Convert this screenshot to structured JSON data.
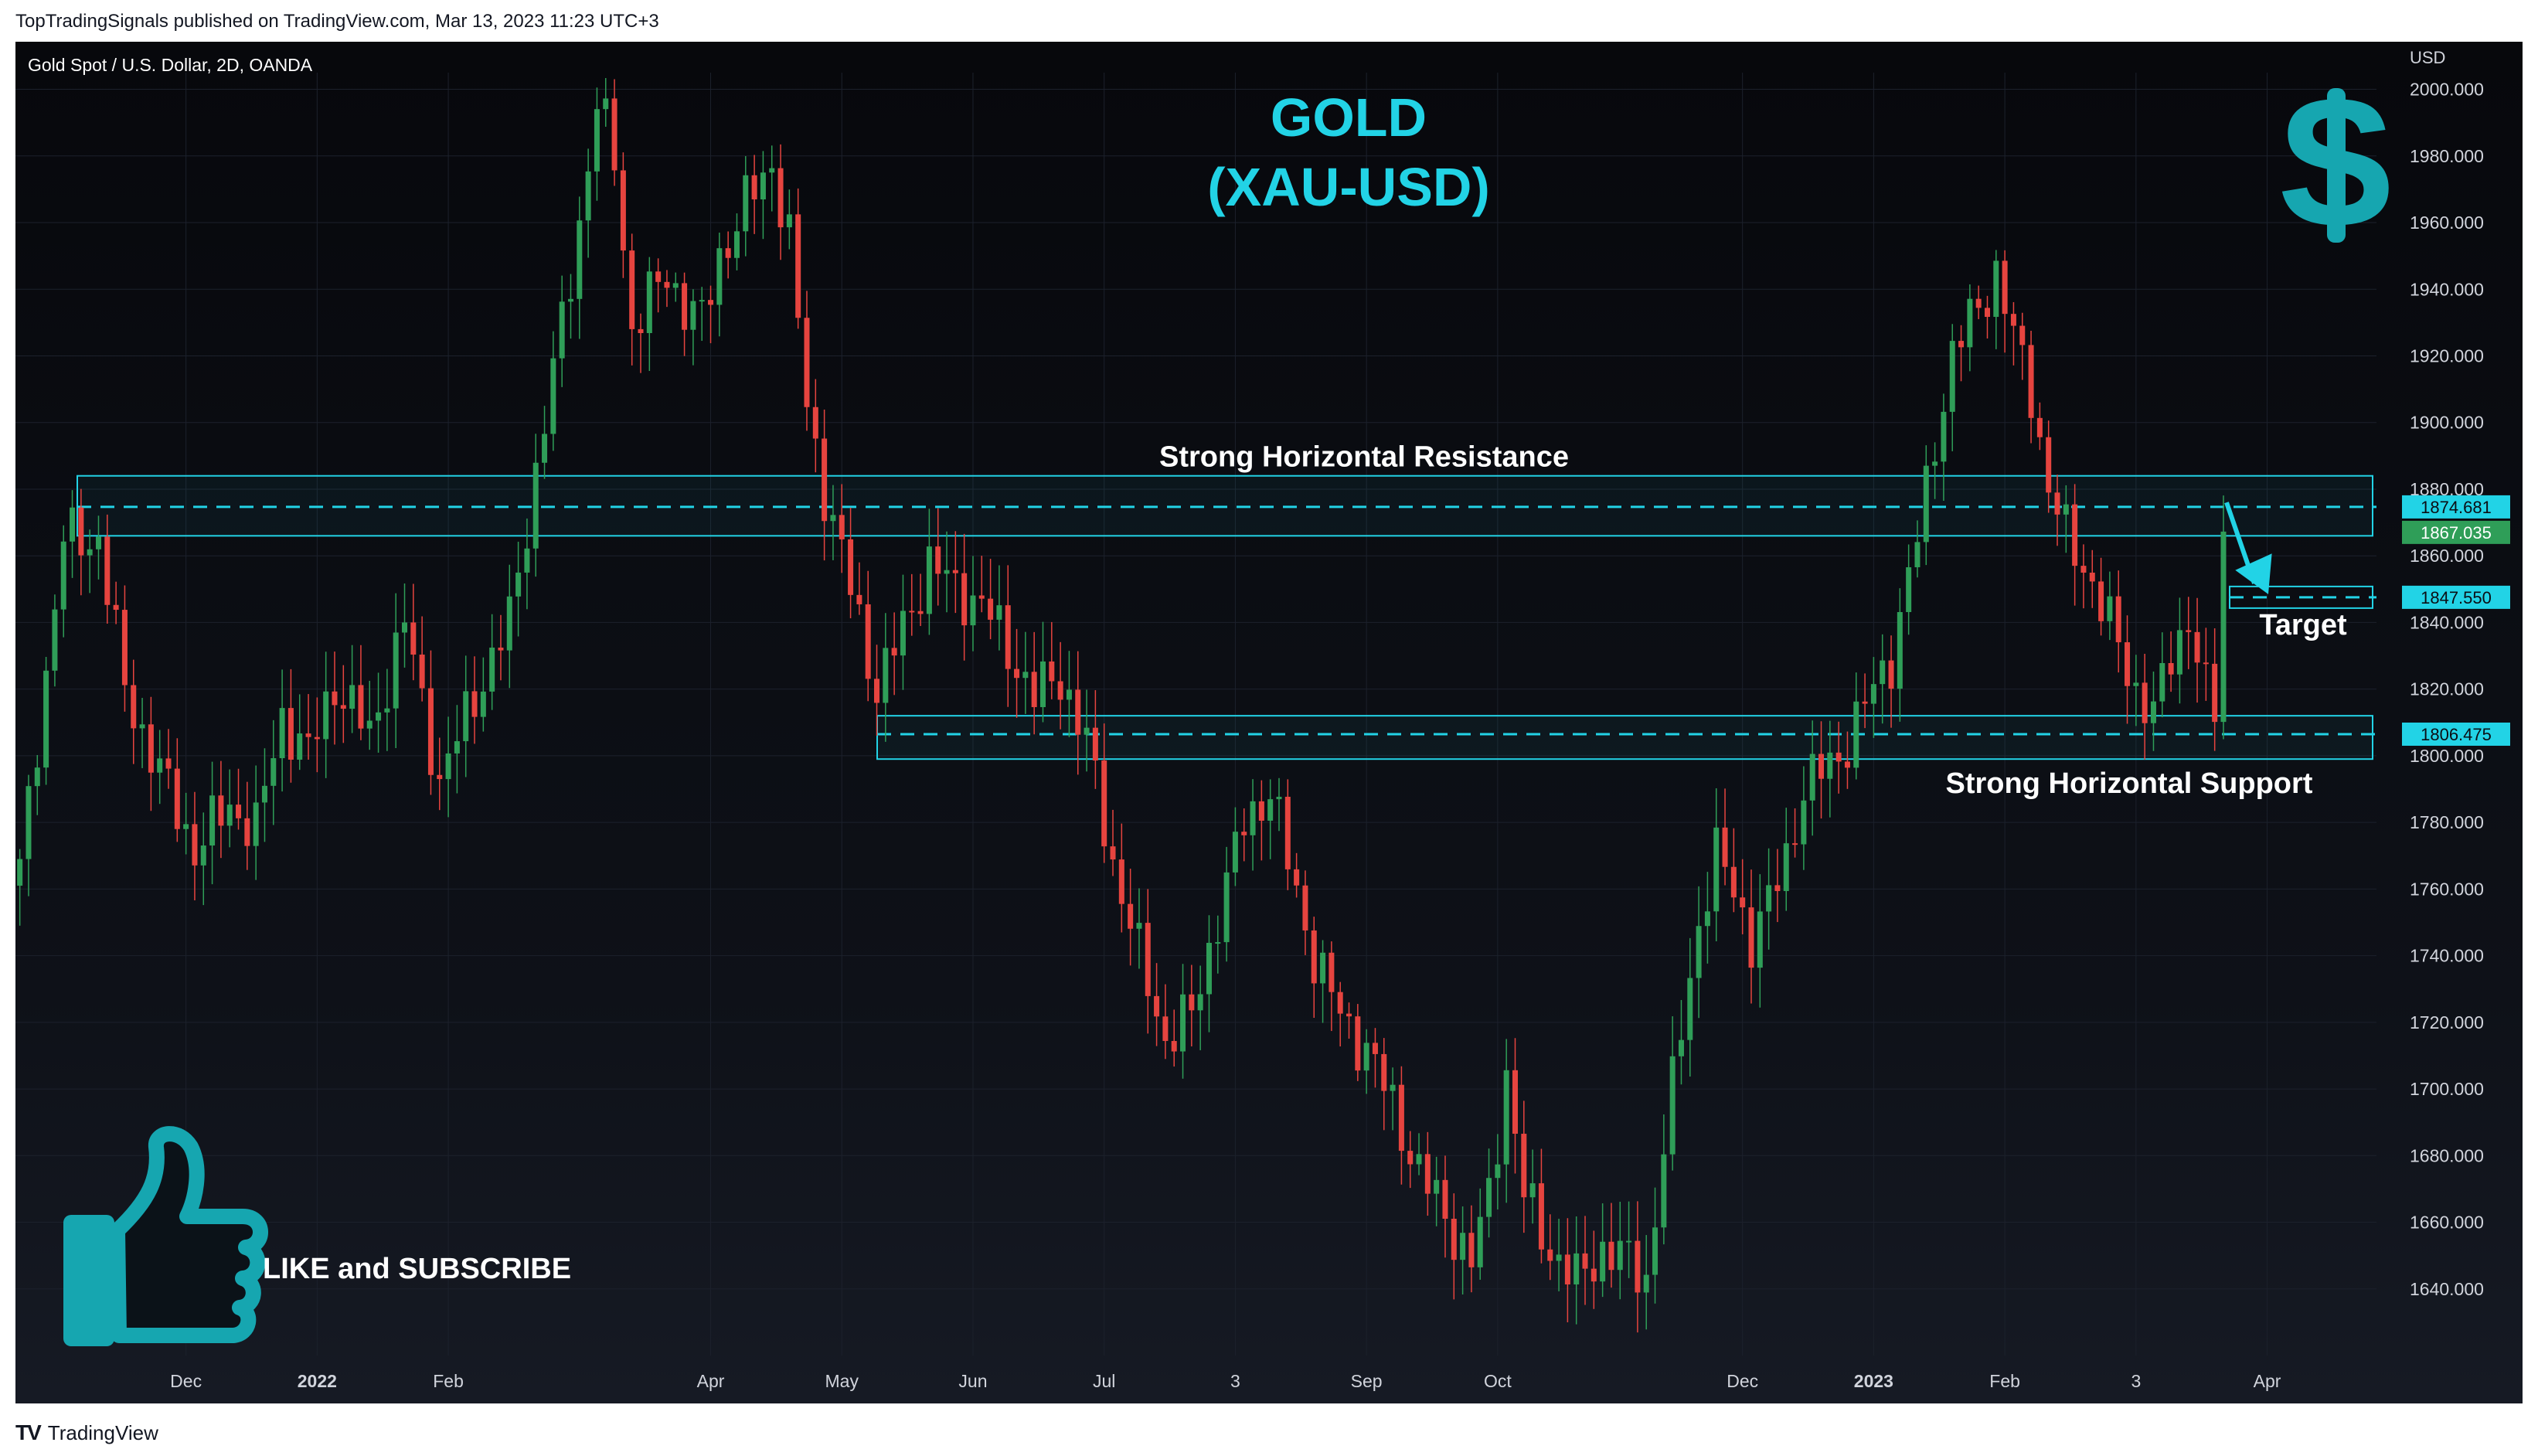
{
  "published": "TopTradingSignals published on TradingView.com, Mar 13, 2023 11:23 UTC+3",
  "footer": {
    "brand": "TradingView",
    "logo": "TV"
  },
  "colors": {
    "up": "#2f9e58",
    "down": "#e6443f",
    "accent": "#22d3e6",
    "text": "#ffffff",
    "axis_text": "#d1d4dc",
    "grid": "#1c212c"
  },
  "chart_data": {
    "type": "candlestick",
    "symbol": "Gold Spot / U.S. Dollar, 2D, OANDA",
    "currency": "USD",
    "title": "GOLD",
    "subtitle": "(XAU-USD)",
    "icon": "dollar-sign-icon",
    "ylim": [
      1620,
      2005
    ],
    "yticks": [
      1640,
      1660,
      1680,
      1700,
      1720,
      1740,
      1760,
      1780,
      1800,
      1820,
      1840,
      1860,
      1880,
      1900,
      1920,
      1940,
      1960,
      1980,
      2000
    ],
    "xticks": [
      {
        "label": "Dec",
        "index": 19
      },
      {
        "label": "2022",
        "index": 34,
        "bold": true
      },
      {
        "label": "Feb",
        "index": 49
      },
      {
        "label": "Apr",
        "index": 79
      },
      {
        "label": "May",
        "index": 94
      },
      {
        "label": "Jun",
        "index": 109
      },
      {
        "label": "Jul",
        "index": 124
      },
      {
        "label": "3",
        "index": 139
      },
      {
        "label": "Sep",
        "index": 154
      },
      {
        "label": "Oct",
        "index": 169
      },
      {
        "label": "Dec",
        "index": 197
      },
      {
        "label": "2023",
        "index": 212,
        "bold": true
      },
      {
        "label": "Feb",
        "index": 227
      },
      {
        "label": "3",
        "index": 242
      },
      {
        "label": "Apr",
        "index": 257
      }
    ],
    "candle_count_span": 270,
    "waypoints": [
      [
        0,
        1765
      ],
      [
        5,
        1865
      ],
      [
        9,
        1865
      ],
      [
        12,
        1820
      ],
      [
        16,
        1795
      ],
      [
        20,
        1772
      ],
      [
        24,
        1785
      ],
      [
        27,
        1778
      ],
      [
        30,
        1812
      ],
      [
        33,
        1800
      ],
      [
        36,
        1822
      ],
      [
        40,
        1806
      ],
      [
        44,
        1840
      ],
      [
        48,
        1792
      ],
      [
        52,
        1818
      ],
      [
        56,
        1840
      ],
      [
        60,
        1900
      ],
      [
        64,
        1960
      ],
      [
        66,
        1995
      ],
      [
        68,
        1980
      ],
      [
        70,
        1928
      ],
      [
        74,
        1945
      ],
      [
        76,
        1935
      ],
      [
        78,
        1930
      ],
      [
        80,
        1950
      ],
      [
        83,
        1965
      ],
      [
        86,
        1978
      ],
      [
        88,
        1955
      ],
      [
        90,
        1905
      ],
      [
        92,
        1880
      ],
      [
        95,
        1850
      ],
      [
        98,
        1820
      ],
      [
        101,
        1838
      ],
      [
        104,
        1858
      ],
      [
        107,
        1850
      ],
      [
        110,
        1846
      ],
      [
        113,
        1832
      ],
      [
        116,
        1818
      ],
      [
        119,
        1824
      ],
      [
        122,
        1804
      ],
      [
        125,
        1768
      ],
      [
        128,
        1740
      ],
      [
        131,
        1715
      ],
      [
        134,
        1722
      ],
      [
        137,
        1752
      ],
      [
        140,
        1780
      ],
      [
        143,
        1790
      ],
      [
        145,
        1768
      ],
      [
        148,
        1740
      ],
      [
        151,
        1722
      ],
      [
        154,
        1712
      ],
      [
        157,
        1695
      ],
      [
        160,
        1675
      ],
      [
        163,
        1662
      ],
      [
        166,
        1648
      ],
      [
        168,
        1668
      ],
      [
        170,
        1705
      ],
      [
        172,
        1668
      ],
      [
        175,
        1652
      ],
      [
        178,
        1642
      ],
      [
        181,
        1652
      ],
      [
        183,
        1650
      ],
      [
        186,
        1643
      ],
      [
        188,
        1682
      ],
      [
        190,
        1718
      ],
      [
        192,
        1750
      ],
      [
        194,
        1770
      ],
      [
        196,
        1760
      ],
      [
        198,
        1745
      ],
      [
        200,
        1755
      ],
      [
        202,
        1770
      ],
      [
        204,
        1790
      ],
      [
        206,
        1795
      ],
      [
        208,
        1800
      ],
      [
        211,
        1815
      ],
      [
        214,
        1830
      ],
      [
        217,
        1865
      ],
      [
        219,
        1895
      ],
      [
        221,
        1920
      ],
      [
        224,
        1935
      ],
      [
        226,
        1945
      ],
      [
        228,
        1925
      ],
      [
        230,
        1910
      ],
      [
        232,
        1880
      ],
      [
        234,
        1866
      ],
      [
        236,
        1858
      ],
      [
        238,
        1845
      ],
      [
        240,
        1833
      ],
      [
        242,
        1820
      ],
      [
        244,
        1812
      ],
      [
        246,
        1830
      ],
      [
        248,
        1842
      ],
      [
        250,
        1818
      ],
      [
        251,
        1813
      ],
      [
        252,
        1867
      ]
    ],
    "resistance_zone": {
      "low": 1866,
      "high": 1884,
      "line": 1874.681,
      "label": "Strong Horizontal Resistance"
    },
    "support_zone": {
      "low": 1799,
      "high": 1812,
      "line": 1806.475,
      "label": "Strong Horizontal Support"
    },
    "target": {
      "value": 1847.55,
      "label": "Target"
    },
    "price_labels": [
      {
        "value": 1874.681,
        "text": "1874.681",
        "bg": "#22d3e6",
        "fg": "#0b0e14"
      },
      {
        "value": 1867.035,
        "text": "1867.035",
        "bg": "#2f9e58",
        "fg": "#ffffff"
      },
      {
        "value": 1847.55,
        "text": "1847.550",
        "bg": "#22d3e6",
        "fg": "#0b0e14"
      },
      {
        "value": 1806.475,
        "text": "1806.475",
        "bg": "#22d3e6",
        "fg": "#0b0e14"
      }
    ],
    "cta": {
      "text": "LIKE and SUBSCRIBE",
      "icon": "thumbs-up-icon"
    }
  }
}
